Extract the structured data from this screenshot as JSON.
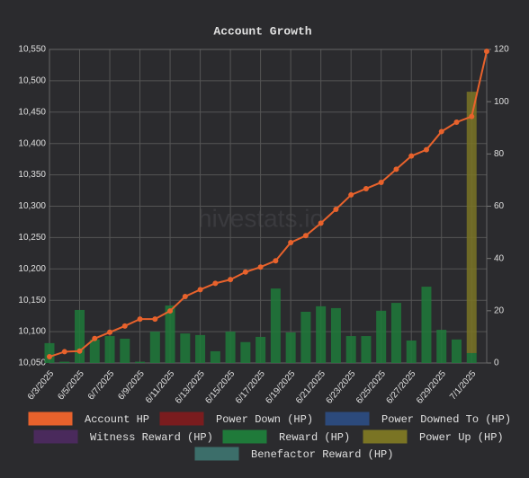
{
  "chart_data": {
    "type": "bar-line",
    "title": "Account Growth",
    "watermark": "hivestats.io",
    "categories": [
      "6/3/2025",
      null,
      "6/5/2025",
      null,
      "6/7/2025",
      null,
      "6/9/2025",
      null,
      "6/11/2025",
      null,
      "6/13/2025",
      null,
      "6/15/2025",
      null,
      "6/17/2025",
      null,
      "6/19/2025",
      null,
      "6/21/2025",
      null,
      "6/23/2025",
      null,
      "6/25/2025",
      null,
      "6/27/2025",
      null,
      "6/29/2025",
      null,
      "7/1/2025",
      null
    ],
    "ylim": [
      10050,
      10550
    ],
    "yticks": [
      {
        "value": 10050,
        "label": "10,050"
      },
      {
        "value": 10100,
        "label": "10,100"
      },
      {
        "value": 10150,
        "label": "10,150"
      },
      {
        "value": 10200,
        "label": "10,200"
      },
      {
        "value": 10250,
        "label": "10,250"
      },
      {
        "value": 10300,
        "label": "10,300"
      },
      {
        "value": 10350,
        "label": "10,350"
      },
      {
        "value": 10400,
        "label": "10,400"
      },
      {
        "value": 10450,
        "label": "10,450"
      },
      {
        "value": 10500,
        "label": "10,500"
      },
      {
        "value": 10550,
        "label": "10,550"
      }
    ],
    "y2lim": [
      0,
      120
    ],
    "y2ticks": [
      0,
      20,
      40,
      60,
      80,
      100,
      120
    ],
    "grid": true,
    "stacked": true,
    "legend": "bottom",
    "series": [
      {
        "name": "Account HP",
        "type": "line",
        "axis": "y",
        "color": "#e8622c",
        "values": [
          10060,
          10068,
          10069,
          10089,
          10099,
          10109,
          10120,
          10120,
          10133,
          10156,
          10167,
          10177,
          10183,
          10195,
          10203,
          10213,
          10242,
          10253,
          10273,
          10295,
          10318,
          10328,
          10338,
          10359,
          10380,
          10390,
          10419,
          10434,
          10443,
          10547
        ]
      },
      {
        "name": "Power Down (HP)",
        "type": "bar",
        "axis": "y2",
        "color": "#7a1c1e",
        "values": [
          0,
          0,
          0,
          0,
          0,
          0,
          0,
          0,
          0,
          0,
          0,
          0,
          0,
          0,
          0,
          0,
          0,
          0,
          0,
          0,
          0,
          0,
          0,
          0,
          0,
          0,
          0,
          0,
          0,
          0
        ]
      },
      {
        "name": "Power Downed To (HP)",
        "type": "bar",
        "axis": "y2",
        "color": "#2c4a7c",
        "values": [
          0,
          0,
          0,
          0,
          0,
          0,
          0,
          0,
          0,
          0,
          0,
          0,
          0,
          0,
          0,
          0,
          0,
          0,
          0,
          0,
          0,
          0,
          0,
          0,
          0,
          0,
          0,
          0,
          0,
          0
        ]
      },
      {
        "name": "Witness Reward (HP)",
        "type": "bar",
        "axis": "y2",
        "color": "#4a2a5c",
        "values": [
          0,
          0,
          0,
          0,
          0,
          0,
          0,
          0,
          0,
          0,
          0,
          0,
          0,
          0,
          0,
          0,
          0,
          0,
          0,
          0,
          0,
          0,
          0,
          0,
          0,
          0,
          0,
          0,
          0,
          0
        ]
      },
      {
        "name": "Reward (HP)",
        "type": "bar",
        "axis": "y2",
        "color": "#1f7a3a",
        "values": [
          7.6,
          0.5,
          20.3,
          9,
          10.3,
          9.3,
          0.5,
          12,
          22,
          11.3,
          10.7,
          4.5,
          12,
          8,
          10,
          28.5,
          11.7,
          19.6,
          21.7,
          21,
          10.3,
          10.3,
          20,
          23,
          8.6,
          29.2,
          12.7,
          9,
          3.8,
          0
        ]
      },
      {
        "name": "Power Up (HP)",
        "type": "bar",
        "axis": "y2",
        "color": "#7a7424",
        "values": [
          0,
          0,
          0,
          0,
          0,
          0,
          0,
          0,
          0,
          0,
          0,
          0,
          0,
          0,
          0,
          0,
          0,
          0,
          0,
          0,
          0,
          0,
          0,
          0,
          0,
          0,
          0,
          0,
          100,
          0
        ]
      },
      {
        "name": "Benefactor Reward (HP)",
        "type": "bar",
        "axis": "y2",
        "color": "#3c6e6a",
        "values": [
          0,
          0,
          0,
          0,
          0,
          0,
          0,
          0,
          0,
          0,
          0,
          0,
          0,
          0,
          0,
          0,
          0,
          0,
          0,
          0,
          0,
          0,
          0,
          0,
          0,
          0,
          0,
          0,
          0,
          0
        ]
      }
    ]
  }
}
